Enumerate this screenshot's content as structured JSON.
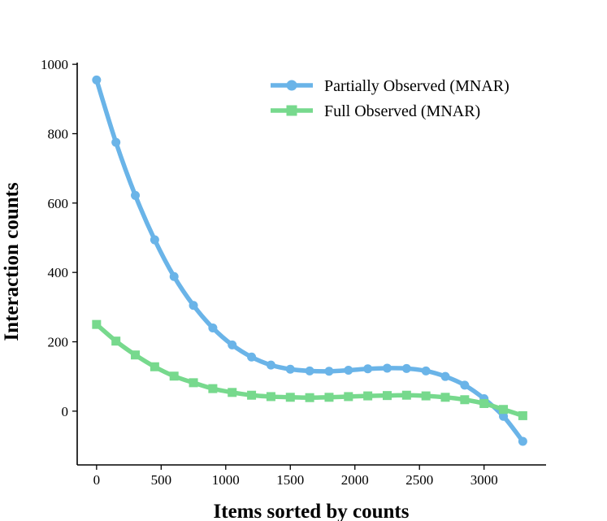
{
  "chart_data": {
    "type": "line",
    "xlabel": "Items sorted by counts",
    "ylabel": "Interaction counts",
    "xlim": [
      -150,
      3480
    ],
    "ylim": [
      -155,
      1005
    ],
    "xticks": [
      0,
      500,
      1000,
      1500,
      2000,
      2500,
      3000
    ],
    "yticks": [
      0,
      200,
      400,
      600,
      800,
      1000
    ],
    "legend_position": "top-right",
    "series": [
      {
        "name": "Partially Observed (MNAR)",
        "marker": "circle",
        "color": "#6ab4e8",
        "x": [
          0,
          150,
          300,
          450,
          600,
          750,
          900,
          1050,
          1200,
          1350,
          1500,
          1650,
          1800,
          1950,
          2100,
          2250,
          2400,
          2550,
          2700,
          2850,
          3000,
          3150,
          3300
        ],
        "y": [
          955,
          775,
          622,
          494,
          388,
          305,
          240,
          191,
          156,
          133,
          121,
          116,
          115,
          118,
          122,
          124,
          123,
          116,
          100,
          75,
          36,
          -15,
          -87
        ]
      },
      {
        "name": "Full Observed (MNAR)",
        "marker": "square",
        "color": "#77d98d",
        "x": [
          0,
          150,
          300,
          450,
          600,
          750,
          900,
          1050,
          1200,
          1350,
          1500,
          1650,
          1800,
          1950,
          2100,
          2250,
          2400,
          2550,
          2700,
          2850,
          3000,
          3150,
          3300
        ],
        "y": [
          250,
          202,
          162,
          128,
          101,
          82,
          65,
          54,
          46,
          42,
          40,
          39,
          40,
          42,
          44,
          45,
          46,
          44,
          40,
          33,
          22,
          5,
          -13
        ]
      }
    ]
  }
}
